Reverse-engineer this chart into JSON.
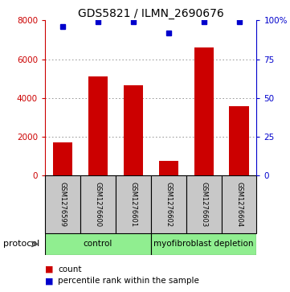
{
  "title": "GDS5821 / ILMN_2690676",
  "samples": [
    "GSM1276599",
    "GSM1276600",
    "GSM1276601",
    "GSM1276602",
    "GSM1276603",
    "GSM1276604"
  ],
  "counts": [
    1700,
    5100,
    4650,
    750,
    6600,
    3550
  ],
  "percentiles": [
    96,
    99,
    99,
    92,
    99,
    99
  ],
  "groups": [
    {
      "label": "control",
      "indices": [
        0,
        1,
        2
      ],
      "color": "#90EE90"
    },
    {
      "label": "myofibroblast depletion",
      "indices": [
        3,
        4,
        5
      ],
      "color": "#90EE90"
    }
  ],
  "bar_color": "#CC0000",
  "dot_color": "#0000CC",
  "ylim_left": [
    0,
    8000
  ],
  "ylim_right": [
    0,
    100
  ],
  "yticks_left": [
    0,
    2000,
    4000,
    6000,
    8000
  ],
  "yticks_right": [
    0,
    25,
    50,
    75,
    100
  ],
  "ytick_labels_right": [
    "0",
    "25",
    "50",
    "75",
    "100%"
  ],
  "grid_color": "#888888",
  "left_axis_color": "#CC0000",
  "right_axis_color": "#0000CC",
  "protocol_label": "protocol",
  "legend_count_label": "count",
  "legend_percentile_label": "percentile rank within the sample",
  "bar_width": 0.55,
  "sample_box_color": "#C8C8C8",
  "title_fontsize": 10,
  "tick_fontsize": 7.5,
  "label_fontsize": 7.5
}
